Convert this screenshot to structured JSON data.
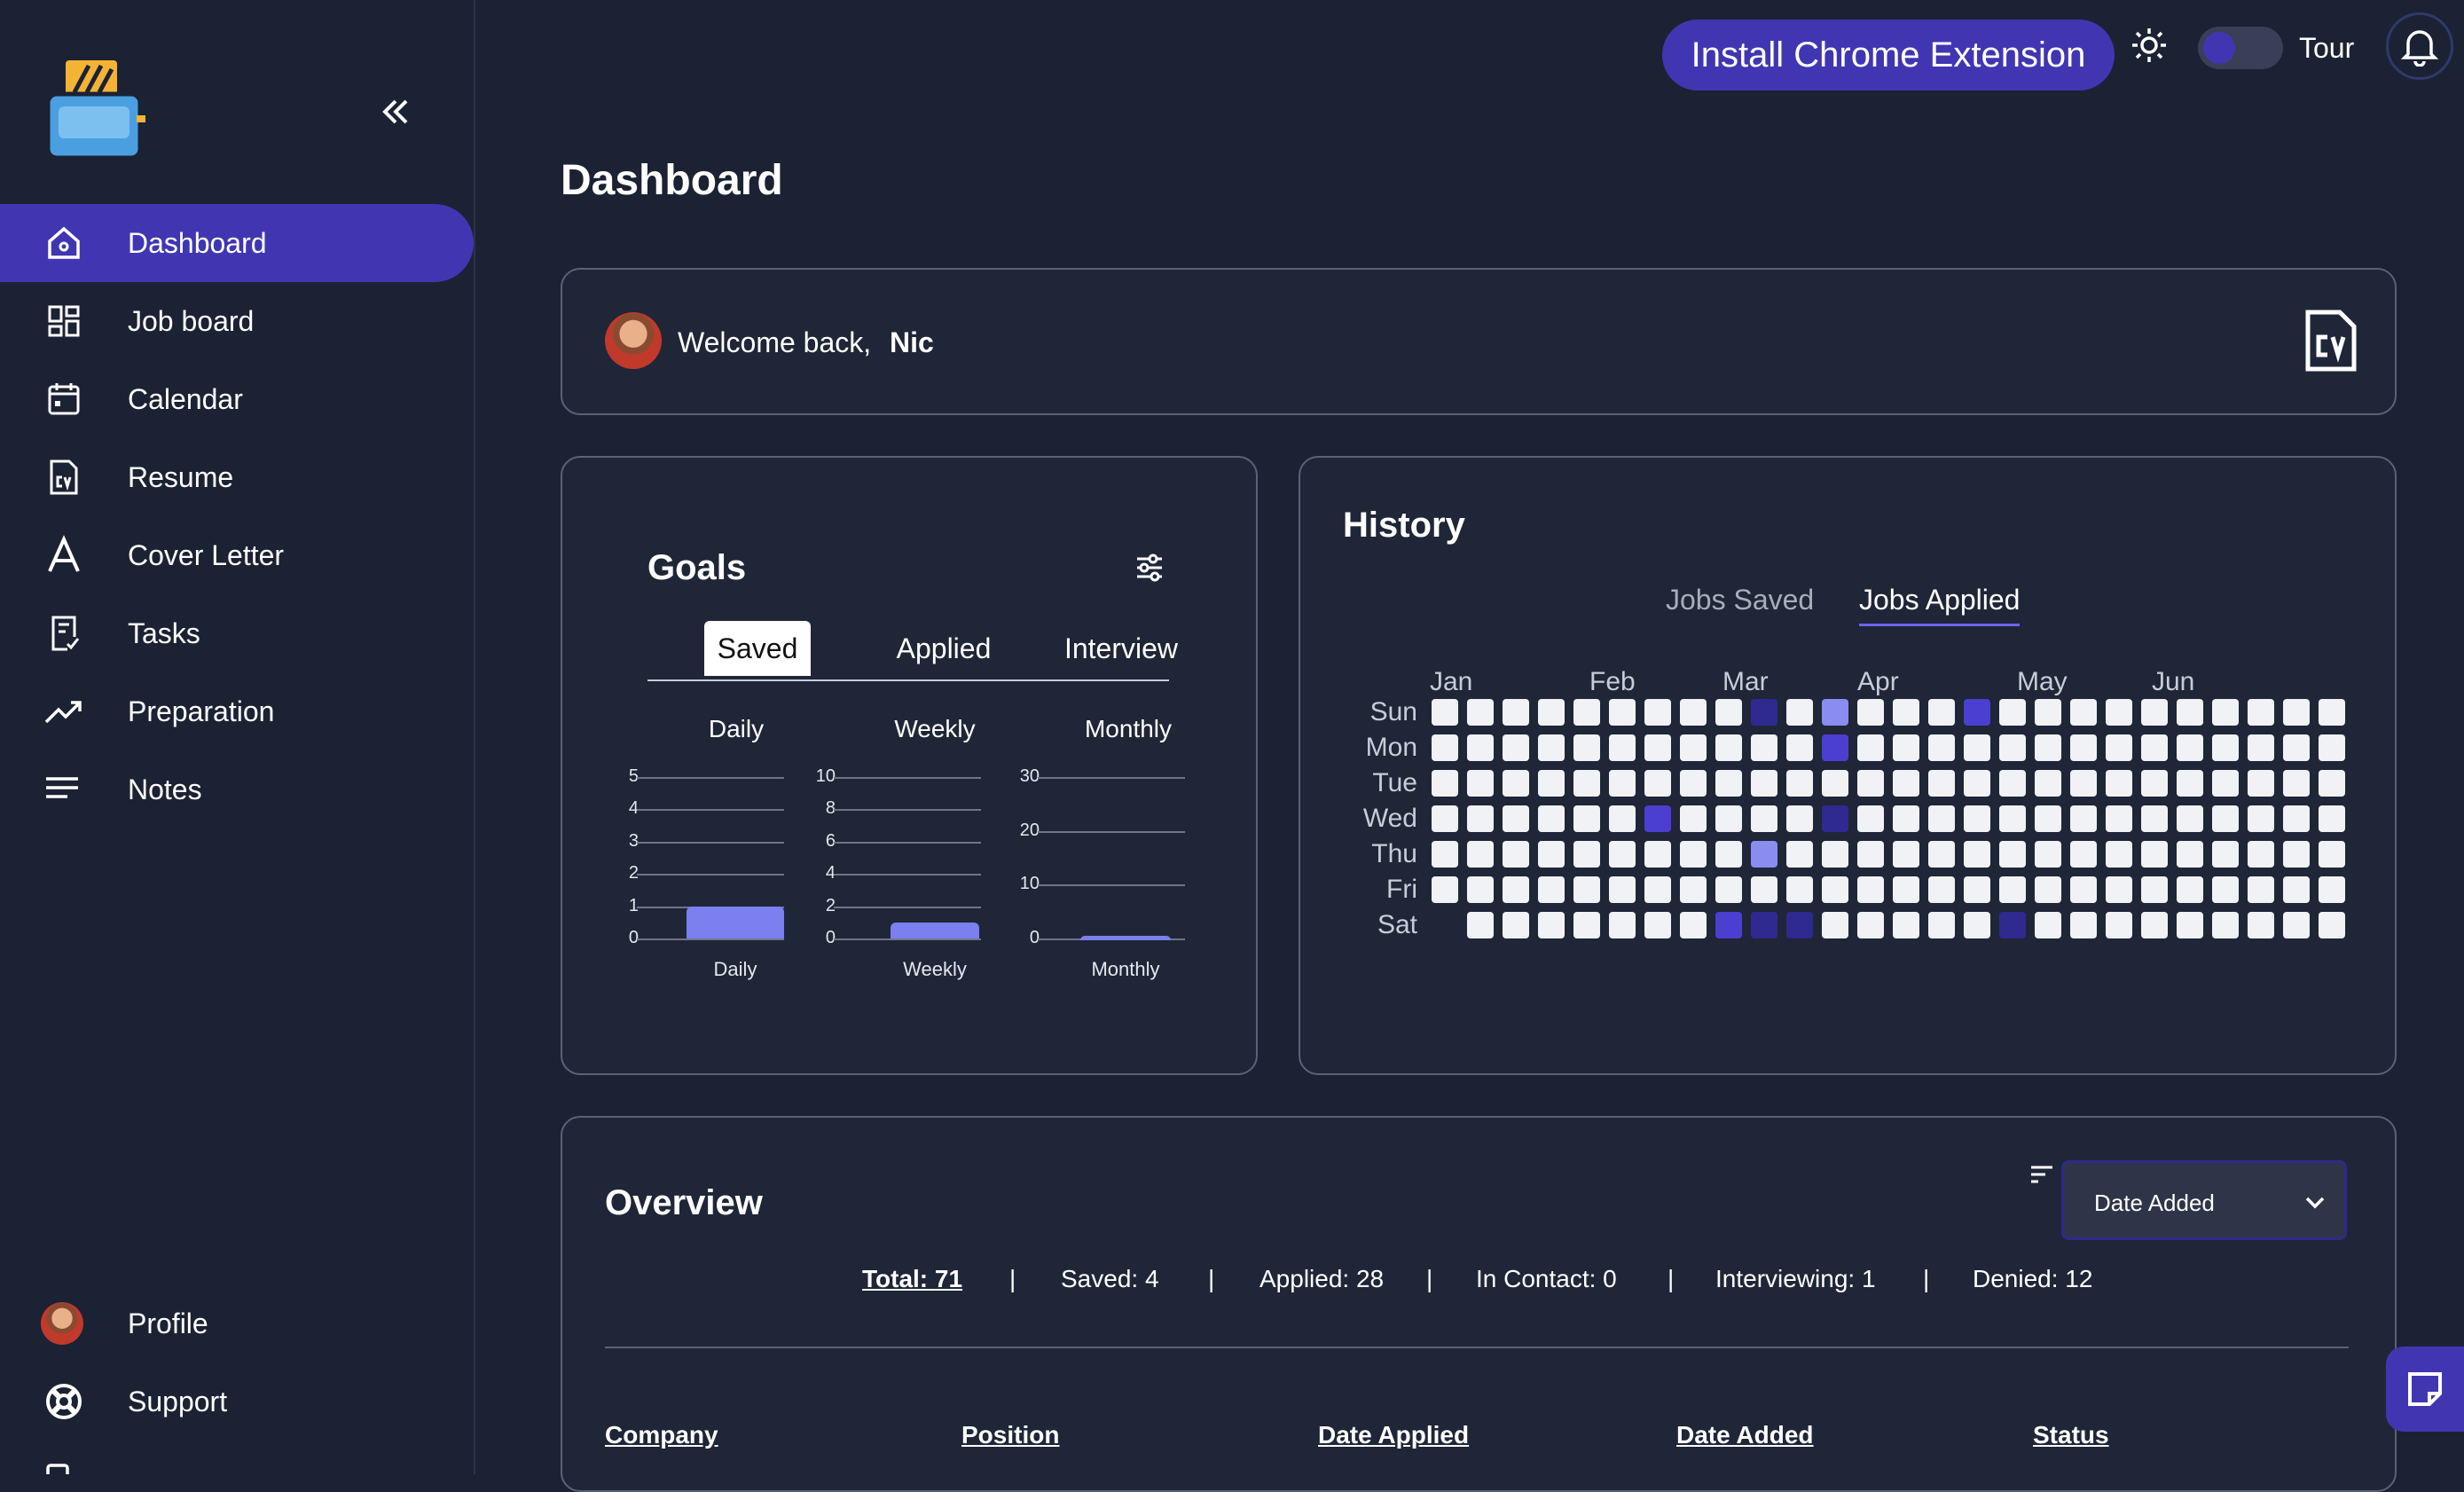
{
  "header": {
    "install_button": "Install Chrome Extension",
    "tour_label": "Tour",
    "tour_enabled": false
  },
  "sidebar": {
    "items": [
      {
        "label": "Dashboard",
        "icon": "home-icon",
        "active": true
      },
      {
        "label": "Job board",
        "icon": "grid-icon"
      },
      {
        "label": "Calendar",
        "icon": "calendar-icon"
      },
      {
        "label": "Resume",
        "icon": "cv-icon"
      },
      {
        "label": "Cover Letter",
        "icon": "letter-a-icon"
      },
      {
        "label": "Tasks",
        "icon": "tasks-icon"
      },
      {
        "label": "Preparation",
        "icon": "trend-icon"
      },
      {
        "label": "Notes",
        "icon": "notes-icon"
      }
    ],
    "bottom_items": [
      {
        "label": "Profile",
        "icon": "avatar"
      },
      {
        "label": "Support",
        "icon": "lifebuoy-icon"
      }
    ]
  },
  "page": {
    "title": "Dashboard"
  },
  "welcome": {
    "greeting": "Welcome back,",
    "name": "Nic"
  },
  "goals": {
    "title": "Goals",
    "tabs": [
      "Saved",
      "Applied",
      "Interview"
    ],
    "active_tab": "Saved",
    "charts": [
      {
        "header": "Daily",
        "xlabel": "Daily",
        "ticks": [
          "5",
          "4",
          "3",
          "2",
          "1",
          "0"
        ],
        "ymax": 5,
        "value": 1
      },
      {
        "header": "Weekly",
        "xlabel": "Weekly",
        "ticks": [
          "10",
          "8",
          "6",
          "4",
          "2",
          "0"
        ],
        "ymax": 10,
        "value": 1
      },
      {
        "header": "Monthly",
        "xlabel": "Monthly",
        "ticks": [
          "30",
          "20",
          "10",
          "0"
        ],
        "ymax": 30,
        "value": 0.5
      }
    ]
  },
  "history": {
    "title": "History",
    "tabs": [
      "Jobs Saved",
      "Jobs Applied"
    ],
    "active_tab": "Jobs Applied",
    "months": [
      "Jan",
      "Feb",
      "Mar",
      "Apr",
      "May",
      "Jun"
    ],
    "days": [
      "Sun",
      "Mon",
      "Tue",
      "Wed",
      "Thu",
      "Fri",
      "Sat"
    ],
    "weeks": 26,
    "levels": {
      "c1": "#f1f2f6",
      "c2": "#8a8cf0",
      "c3": "#4a3fd1",
      "c4": "#2f2a8f"
    },
    "active_cells": [
      {
        "week": 9,
        "day": 0,
        "level": "c4"
      },
      {
        "week": 11,
        "day": 0,
        "level": "c2"
      },
      {
        "week": 15,
        "day": 0,
        "level": "c3"
      },
      {
        "week": 11,
        "day": 1,
        "level": "c3"
      },
      {
        "week": 6,
        "day": 3,
        "level": "c3"
      },
      {
        "week": 11,
        "day": 3,
        "level": "c4"
      },
      {
        "week": 9,
        "day": 4,
        "level": "c2"
      },
      {
        "week": 8,
        "day": 6,
        "level": "c3"
      },
      {
        "week": 9,
        "day": 6,
        "level": "c4"
      },
      {
        "week": 10,
        "day": 6,
        "level": "c4"
      },
      {
        "week": 16,
        "day": 6,
        "level": "c4"
      }
    ]
  },
  "overview": {
    "title": "Overview",
    "sort_value": "Date Added",
    "total_label": "Total:",
    "total_value": "71",
    "stats": [
      "Saved: 4",
      "Applied: 28",
      "In Contact: 0",
      "Interviewing: 1",
      "Denied: 12"
    ],
    "columns": [
      "Company",
      "Position",
      "Date Applied",
      "Date Added",
      "Status"
    ]
  }
}
